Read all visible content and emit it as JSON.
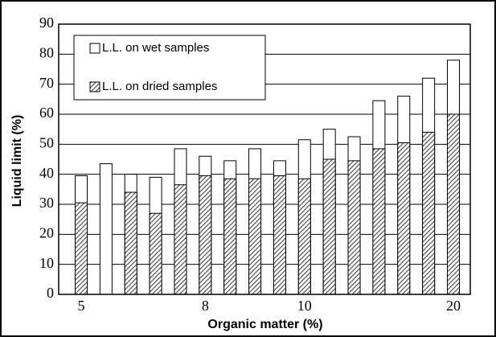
{
  "chart_data": {
    "type": "overlapping-bar",
    "x_label": "Organic matter (%)",
    "y_label": "Liquid limit (%)",
    "categories": [
      "5",
      null,
      null,
      null,
      null,
      "8",
      null,
      null,
      null,
      "10",
      null,
      null,
      null,
      null,
      null,
      "20"
    ],
    "series": [
      {
        "name": "L.L. on wet samples",
        "color": "#ffffff",
        "values": [
          39.5,
          43.5,
          40,
          39,
          48.5,
          46,
          44.5,
          48.5,
          44.5,
          51.5,
          55,
          52.5,
          64.5,
          66,
          72,
          78
        ]
      },
      {
        "name": "L.L. on dried samples",
        "color": "#444444",
        "values": [
          30.5,
          null,
          34,
          27,
          36.5,
          39.5,
          38.5,
          38.5,
          39.5,
          38.5,
          45,
          44.5,
          48.5,
          50.5,
          54,
          60
        ]
      }
    ],
    "ylim": [
      0,
      90
    ],
    "yticks": [
      0,
      10,
      20,
      30,
      40,
      50,
      60,
      70,
      80,
      90
    ],
    "grid": true,
    "legend": "top-left"
  }
}
